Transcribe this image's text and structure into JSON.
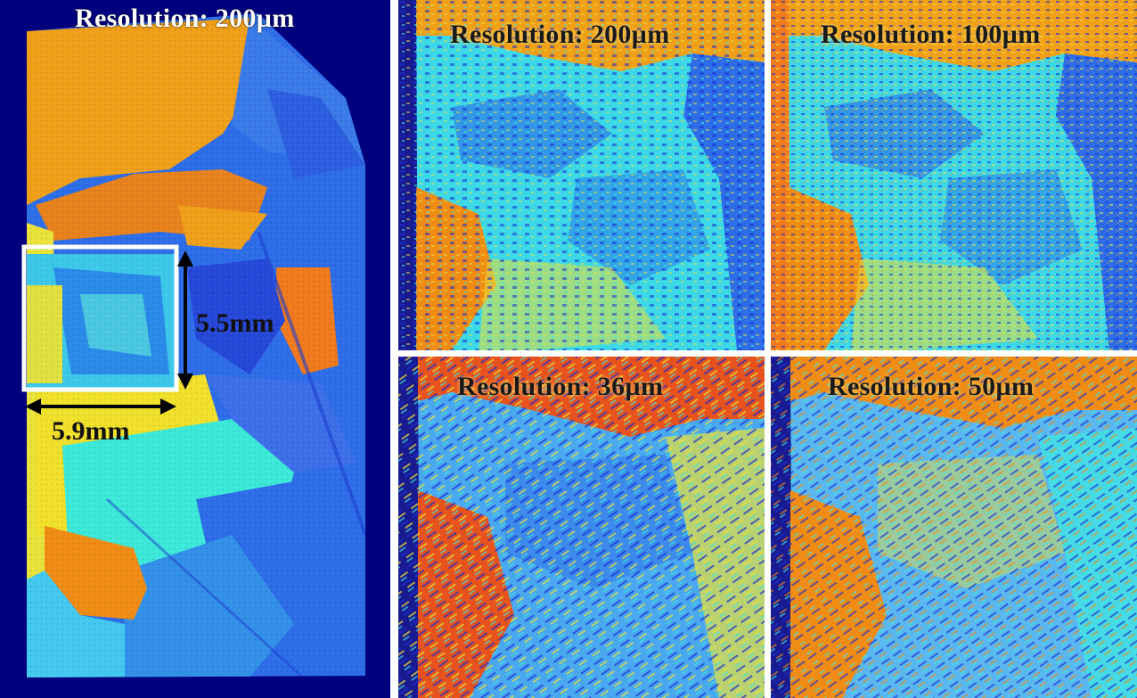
{
  "panels": {
    "overview": {
      "label": "Resolution: 200µm",
      "roi_height": "5.5mm",
      "roi_width": "5.9mm"
    },
    "top_left": {
      "label": "Resolution: 200µm"
    },
    "top_right": {
      "label": "Resolution: 100µm"
    },
    "bottom_left": {
      "label": "Resolution: 36µm"
    },
    "bottom_right": {
      "label": "Resolution: 50µm"
    }
  },
  "colors": {
    "background": "#00007f",
    "orange": "#f08c14",
    "red_orange": "#e8521c",
    "yellow": "#e8e23a",
    "cyan": "#3ce8e0",
    "light_blue": "#4aa8f0",
    "mid_blue": "#2d6de8",
    "deep_blue": "#1a2fd0",
    "roi_box": "#ffffff",
    "arrow": "#000000"
  }
}
